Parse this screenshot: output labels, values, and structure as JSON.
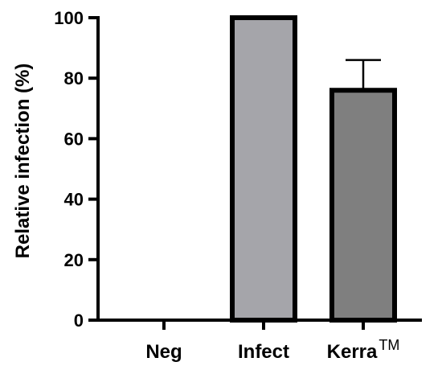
{
  "chart_data": {
    "type": "bar",
    "title": "",
    "xlabel": "",
    "ylabel": "Relative infection  (%)",
    "ylim": [
      0,
      100
    ],
    "yticks": [
      "0",
      "20",
      "40",
      "60",
      "80",
      "100"
    ],
    "categories": [
      "Neg",
      "Infect",
      "Kerra"
    ],
    "category_suffix": {
      "2": "TM"
    },
    "values": [
      0,
      100,
      76
    ],
    "errors": [
      0,
      0,
      10
    ],
    "bar_colors": [
      "#a5a5aa",
      "#a5a5aa",
      "#7f7f7f"
    ],
    "edge_color": "#000000",
    "grid": false
  }
}
